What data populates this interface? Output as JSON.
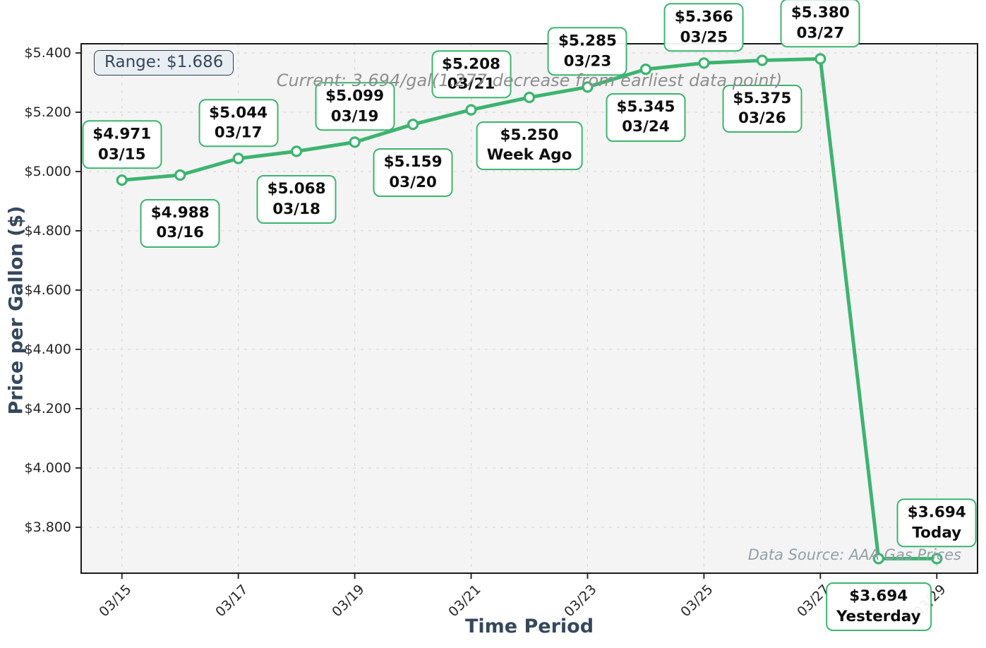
{
  "overlays": {
    "range_label": "Range: $1.686",
    "subtitle": "Current: 3.694/gal(1.277 decrease from earliest data point)",
    "data_source": "Data Source: AAA Gas Prices"
  },
  "colors": {
    "line_green": "#3db46f",
    "marker_fill": "#ffffff",
    "annotation_border": "#3db46f",
    "axis_title_slate": "#35485c",
    "subtitle_gray": "#8f8f8f",
    "source_gray": "#92a0a8",
    "range_box_bg": "#e9eef3",
    "range_box_border": "#2e3d4f",
    "tick_text": "#262626",
    "spine": "#1a1a1a",
    "grid": "#d9d9d9",
    "plot_bg": "#f4f4f5"
  },
  "chart_data": {
    "type": "line",
    "title": "",
    "xlabel": "Time Period",
    "ylabel": "Price per Gallon ($)",
    "legend": "none",
    "grid": "dashed",
    "categories": [
      "03/15",
      "03/16",
      "03/17",
      "03/18",
      "03/19",
      "03/20",
      "03/21",
      "Week Ago",
      "03/23",
      "03/24",
      "03/25",
      "03/26",
      "03/27",
      "Yesterday",
      "Today"
    ],
    "values": [
      4.971,
      4.988,
      5.044,
      5.068,
      5.099,
      5.159,
      5.208,
      5.25,
      5.285,
      5.345,
      5.366,
      5.375,
      5.38,
      3.694,
      3.694
    ],
    "annotations": [
      {
        "price": "$4.971",
        "label": "03/15",
        "placement": "above"
      },
      {
        "price": "$4.988",
        "label": "03/16",
        "placement": "below"
      },
      {
        "price": "$5.044",
        "label": "03/17",
        "placement": "above"
      },
      {
        "price": "$5.068",
        "label": "03/18",
        "placement": "below"
      },
      {
        "price": "$5.099",
        "label": "03/19",
        "placement": "above"
      },
      {
        "price": "$5.159",
        "label": "03/20",
        "placement": "below"
      },
      {
        "price": "$5.208",
        "label": "03/21",
        "placement": "above"
      },
      {
        "price": "$5.250",
        "label": "Week Ago",
        "placement": "below"
      },
      {
        "price": "$5.285",
        "label": "03/23",
        "placement": "above"
      },
      {
        "price": "$5.345",
        "label": "03/24",
        "placement": "below"
      },
      {
        "price": "$5.366",
        "label": "03/25",
        "placement": "above"
      },
      {
        "price": "$5.375",
        "label": "03/26",
        "placement": "below"
      },
      {
        "price": "$5.380",
        "label": "03/27",
        "placement": "above"
      },
      {
        "price": "$3.694",
        "label": "Yesterday",
        "placement": "below"
      },
      {
        "price": "$3.694",
        "label": "Today",
        "placement": "above"
      }
    ],
    "x_ticks": [
      {
        "index": 0,
        "label": "03/15"
      },
      {
        "index": 2,
        "label": "03/17"
      },
      {
        "index": 4,
        "label": "03/19"
      },
      {
        "index": 6,
        "label": "03/21"
      },
      {
        "index": 8,
        "label": "03/23"
      },
      {
        "index": 10,
        "label": "03/25"
      },
      {
        "index": 12,
        "label": "03/27"
      },
      {
        "index": 14,
        "label": "03/29"
      }
    ],
    "y_ticks": [
      {
        "value": 5.4,
        "label": "$5.400"
      },
      {
        "value": 5.2,
        "label": "$5.200"
      },
      {
        "value": 5.0,
        "label": "$5.000"
      },
      {
        "value": 4.8,
        "label": "$4.800"
      },
      {
        "value": 4.6,
        "label": "$4.600"
      },
      {
        "value": 4.4,
        "label": "$4.400"
      },
      {
        "value": 4.2,
        "label": "$4.200"
      },
      {
        "value": 4.0,
        "label": "$4.000"
      },
      {
        "value": 3.8,
        "label": "$3.800"
      }
    ],
    "xlim": [
      -0.7,
      14.7
    ],
    "ylim": [
      3.645,
      5.431
    ]
  }
}
